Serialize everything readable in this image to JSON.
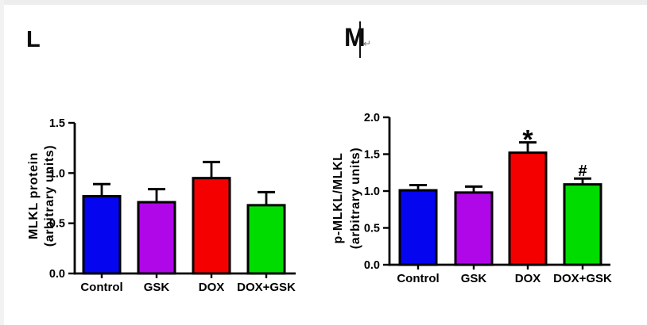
{
  "panels": {
    "l_label": "L",
    "m_label": "M",
    "return_mark": "↵"
  },
  "colors": {
    "bar_blue": "#0505F0",
    "bar_purple": "#B007E8",
    "bar_red": "#F50000",
    "bar_green": "#00DC00",
    "axis": "#000000"
  },
  "chart_data": [
    {
      "id": "L",
      "panel": "L",
      "type": "bar",
      "title": "",
      "ylabel_lines": [
        "MLKL protein",
        "(arbitrary units)"
      ],
      "xlabel": "",
      "categories": [
        "Control",
        "GSK",
        "DOX",
        "DOX+GSK"
      ],
      "values": [
        0.77,
        0.71,
        0.95,
        0.68
      ],
      "errors_upper": [
        0.12,
        0.13,
        0.16,
        0.13
      ],
      "annotations": [
        "",
        "",
        "",
        ""
      ],
      "bar_colors": [
        "#0505F0",
        "#B007E8",
        "#F50000",
        "#00DC00"
      ],
      "ylim": [
        0,
        1.5
      ],
      "ytick_labels": [
        "0.0",
        "0.5",
        "1.0",
        "1.5"
      ],
      "grid": false,
      "legend": "none"
    },
    {
      "id": "M",
      "panel": "M",
      "type": "bar",
      "title": "",
      "ylabel_lines": [
        "p-MLKL/MLKL",
        "(arbitrary units)"
      ],
      "xlabel": "",
      "categories": [
        "Control",
        "GSK",
        "DOX",
        "DOX+GSK"
      ],
      "values": [
        1.01,
        0.98,
        1.52,
        1.09
      ],
      "errors_upper": [
        0.07,
        0.08,
        0.14,
        0.08
      ],
      "annotations": [
        "",
        "",
        "*",
        "#"
      ],
      "bar_colors": [
        "#0505F0",
        "#B007E8",
        "#F50000",
        "#00DC00"
      ],
      "ylim": [
        0,
        2.0
      ],
      "ytick_labels": [
        "0.0",
        "0.5",
        "1.0",
        "1.5",
        "2.0"
      ],
      "grid": false,
      "legend": "none"
    }
  ]
}
